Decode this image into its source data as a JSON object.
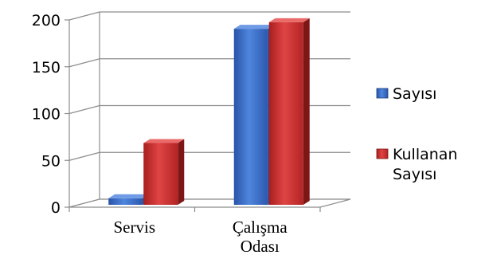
{
  "chart_data": {
    "type": "bar",
    "categories": [
      "Servis",
      "Çalışma Odası"
    ],
    "category_lines": [
      [
        "Servis"
      ],
      [
        "Çalışma",
        "Odası"
      ]
    ],
    "series": [
      {
        "name": "Sayısı",
        "values": [
          7,
          188
        ],
        "color": "#3366cc"
      },
      {
        "name": "Kullanan Sayısı",
        "values": [
          66,
          195
        ],
        "color": "#cc2b2b"
      }
    ],
    "legend_lines": [
      [
        "Sayısı"
      ],
      [
        "Kullanan",
        "Sayısı"
      ]
    ],
    "yticks": [
      0,
      50,
      100,
      150,
      200
    ],
    "ylim": [
      0,
      200
    ],
    "grid": true,
    "legend_position": "right",
    "three_d": true
  }
}
